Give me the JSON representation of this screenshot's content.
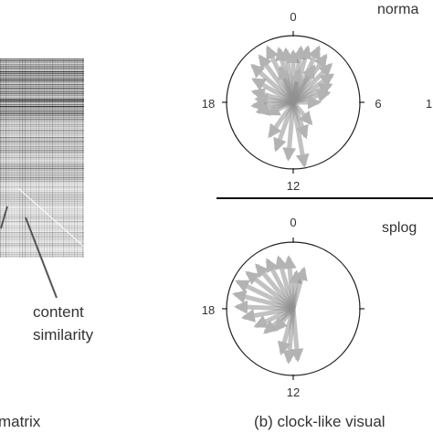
{
  "panel_a": {
    "annotation": [
      "content",
      "similarity"
    ],
    "caption": "matrix"
  },
  "panel_b": {
    "caption": "(b) clock-like visual",
    "top": {
      "label": "norma",
      "ticks": [
        "0",
        "6",
        "12",
        "18"
      ],
      "fragment_right": "1"
    },
    "bottom": {
      "label": "splog",
      "ticks": [
        "0",
        "12",
        "18"
      ]
    }
  },
  "colors": {
    "arrow": "#8f8f8f",
    "arrow_light": "#c4c4c4",
    "circle": "#222222"
  }
}
